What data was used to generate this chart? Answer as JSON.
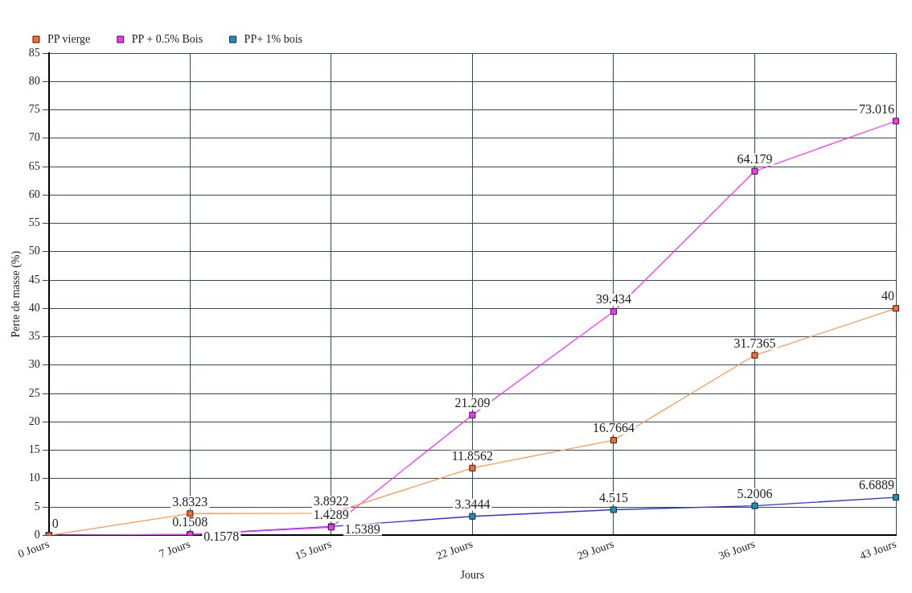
{
  "chart_data": {
    "type": "line",
    "xlabel": "Jours",
    "ylabel": "Perte de masse (%)",
    "categories": [
      "0 Jours",
      "7 Jours",
      "15 Jours",
      "22 Jours",
      "29 Jours",
      "36 Jours",
      "43 Jours"
    ],
    "series": [
      {
        "name": "PP vierge",
        "color": "#ff6a2b",
        "values": [
          0,
          3.8323,
          3.8922,
          11.8562,
          16.7664,
          31.7365,
          40
        ],
        "value_labels": [
          "0",
          "3.8323",
          "3.8922",
          "11.8562",
          "16.7664",
          "31.7365",
          "40"
        ]
      },
      {
        "name": "PP + 0.5% Bois",
        "color": "#ff33ff",
        "values": [
          0,
          0.1508,
          1.4289,
          21.209,
          39.434,
          64.179,
          73.016
        ],
        "value_labels": [
          null,
          "0.1508",
          "1.4289",
          "21.209",
          "39.434",
          "64.179",
          "73.016"
        ]
      },
      {
        "name": "PP+ 1% bois",
        "color": "#1494c4",
        "values": [
          0,
          0.1578,
          1.5389,
          3.3444,
          4.515,
          5.2006,
          6.6889
        ],
        "value_labels": [
          null,
          "0.1578",
          "1.5389",
          "3.3444",
          "4.515",
          "5.2006",
          "6.6889"
        ]
      }
    ],
    "ylim": [
      0,
      85
    ],
    "yticks": [
      0,
      5,
      10,
      15,
      20,
      25,
      30,
      35,
      40,
      45,
      50,
      55,
      60,
      65,
      70,
      75,
      80,
      85
    ],
    "grid": true,
    "legend": "top left",
    "marker": "square",
    "line_style": "solid"
  }
}
